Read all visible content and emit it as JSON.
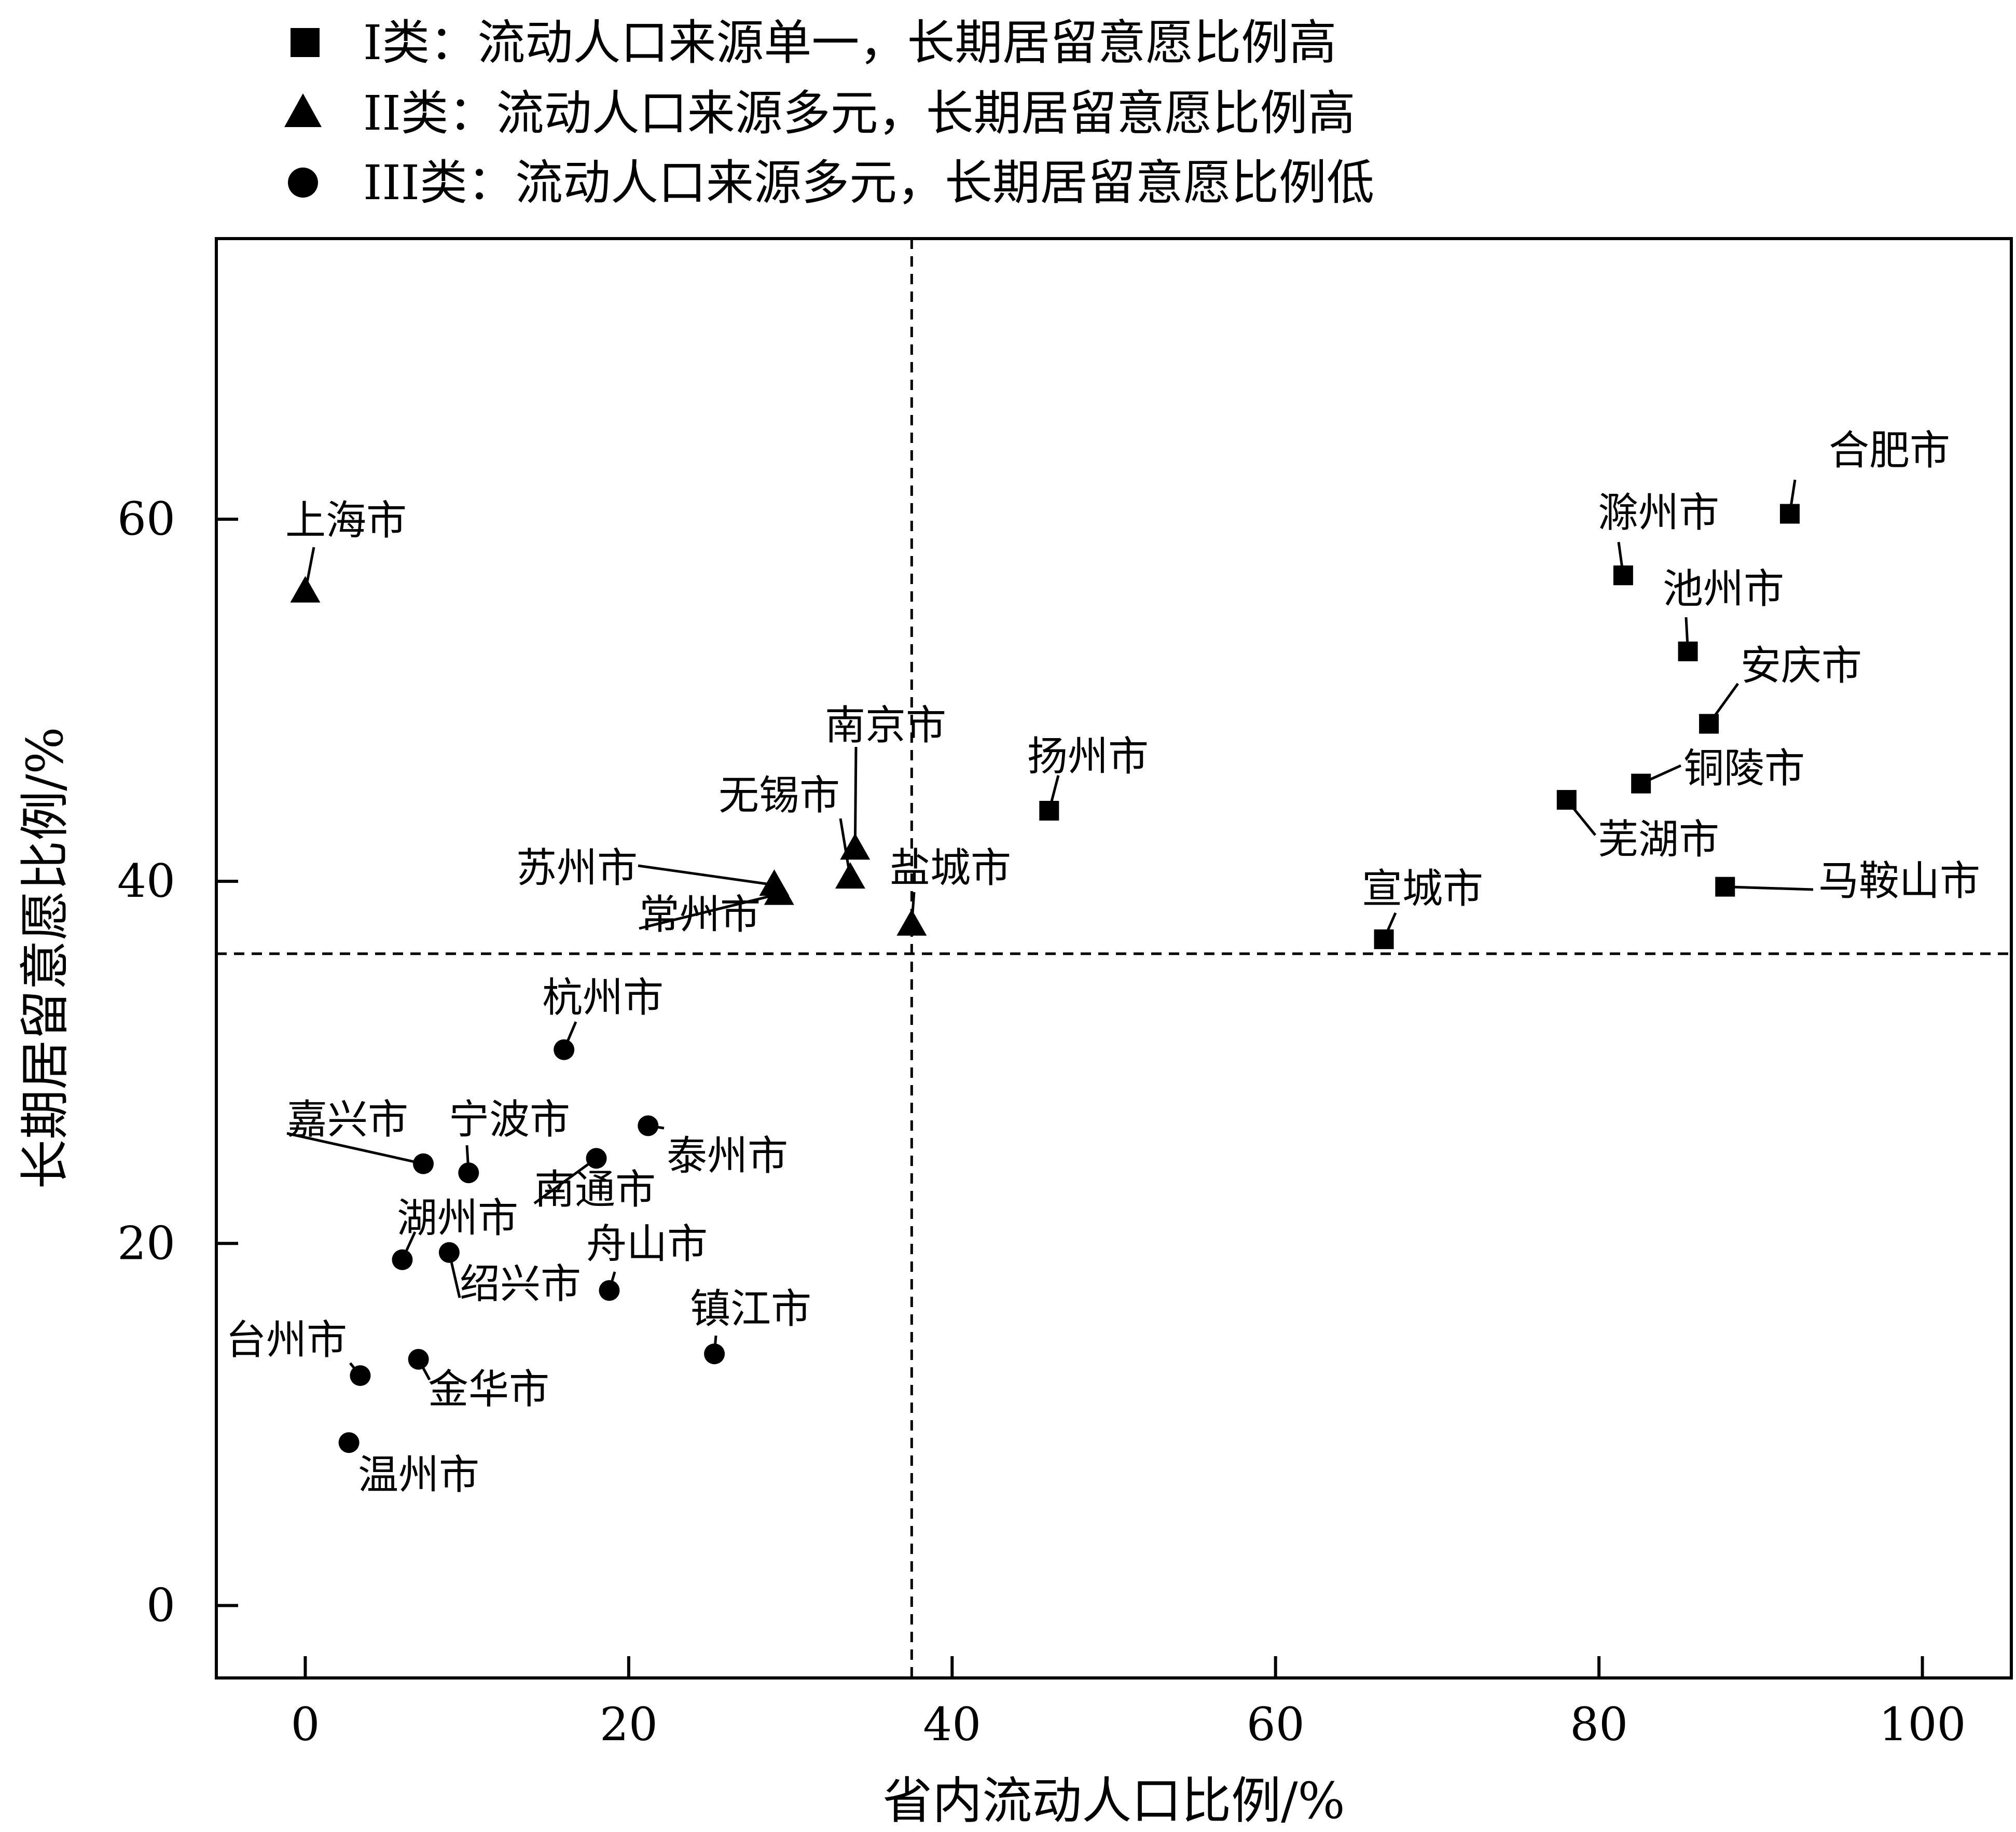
{
  "chart_data": {
    "type": "scatter",
    "xlabel": "省内流动人口比例/%",
    "ylabel": "长期居留意愿比例/%",
    "xlim": [
      -5.5,
      105.5
    ],
    "ylim": [
      -4,
      75.5
    ],
    "xticks": [
      0,
      20,
      40,
      60,
      80,
      100
    ],
    "yticks": [
      0,
      20,
      40,
      60
    ],
    "grid": false,
    "legend_position": "top",
    "reference_lines": {
      "x": 37.5,
      "y": 36
    },
    "series": [
      {
        "name": "I类：流动人口来源单一，长期居留意愿比例高",
        "marker": "square",
        "points": [
          {
            "label": "合肥市",
            "x": 91.8,
            "y": 60.3
          },
          {
            "label": "滁州市",
            "x": 81.5,
            "y": 56.9
          },
          {
            "label": "池州市",
            "x": 85.5,
            "y": 52.7
          },
          {
            "label": "安庆市",
            "x": 86.8,
            "y": 48.7
          },
          {
            "label": "铜陵市",
            "x": 82.6,
            "y": 45.4
          },
          {
            "label": "芜湖市",
            "x": 78.0,
            "y": 44.5
          },
          {
            "label": "马鞍山市",
            "x": 87.8,
            "y": 39.7
          },
          {
            "label": "宣城市",
            "x": 66.7,
            "y": 36.8
          },
          {
            "label": "扬州市",
            "x": 46.0,
            "y": 43.9
          }
        ]
      },
      {
        "name": "II类：流动人口来源多元，长期居留意愿比例高",
        "marker": "triangle",
        "points": [
          {
            "label": "上海市",
            "x": 0.0,
            "y": 56.0
          },
          {
            "label": "南京市",
            "x": 34.0,
            "y": 41.8
          },
          {
            "label": "无锡市",
            "x": 33.7,
            "y": 40.2
          },
          {
            "label": "苏州市",
            "x": 29.0,
            "y": 39.8
          },
          {
            "label": "常州市",
            "x": 29.3,
            "y": 39.3
          },
          {
            "label": "盐城市",
            "x": 37.5,
            "y": 37.6
          }
        ]
      },
      {
        "name": "III类：流动人口来源多元，长期居留意愿比例低",
        "marker": "circle",
        "points": [
          {
            "label": "杭州市",
            "x": 16.0,
            "y": 30.7
          },
          {
            "label": "泰州市",
            "x": 21.2,
            "y": 26.5
          },
          {
            "label": "南通市",
            "x": 18.0,
            "y": 24.7
          },
          {
            "label": "嘉兴市",
            "x": 7.3,
            "y": 24.4
          },
          {
            "label": "宁波市",
            "x": 10.1,
            "y": 23.9
          },
          {
            "label": "绍兴市",
            "x": 8.9,
            "y": 19.5
          },
          {
            "label": "湖州市",
            "x": 6.0,
            "y": 19.1
          },
          {
            "label": "舟山市",
            "x": 18.8,
            "y": 17.4
          },
          {
            "label": "镇江市",
            "x": 25.3,
            "y": 13.9
          },
          {
            "label": "金华市",
            "x": 7.0,
            "y": 13.6
          },
          {
            "label": "台州市",
            "x": 3.4,
            "y": 12.7
          },
          {
            "label": "温州市",
            "x": 2.7,
            "y": 9.0
          }
        ]
      }
    ]
  }
}
